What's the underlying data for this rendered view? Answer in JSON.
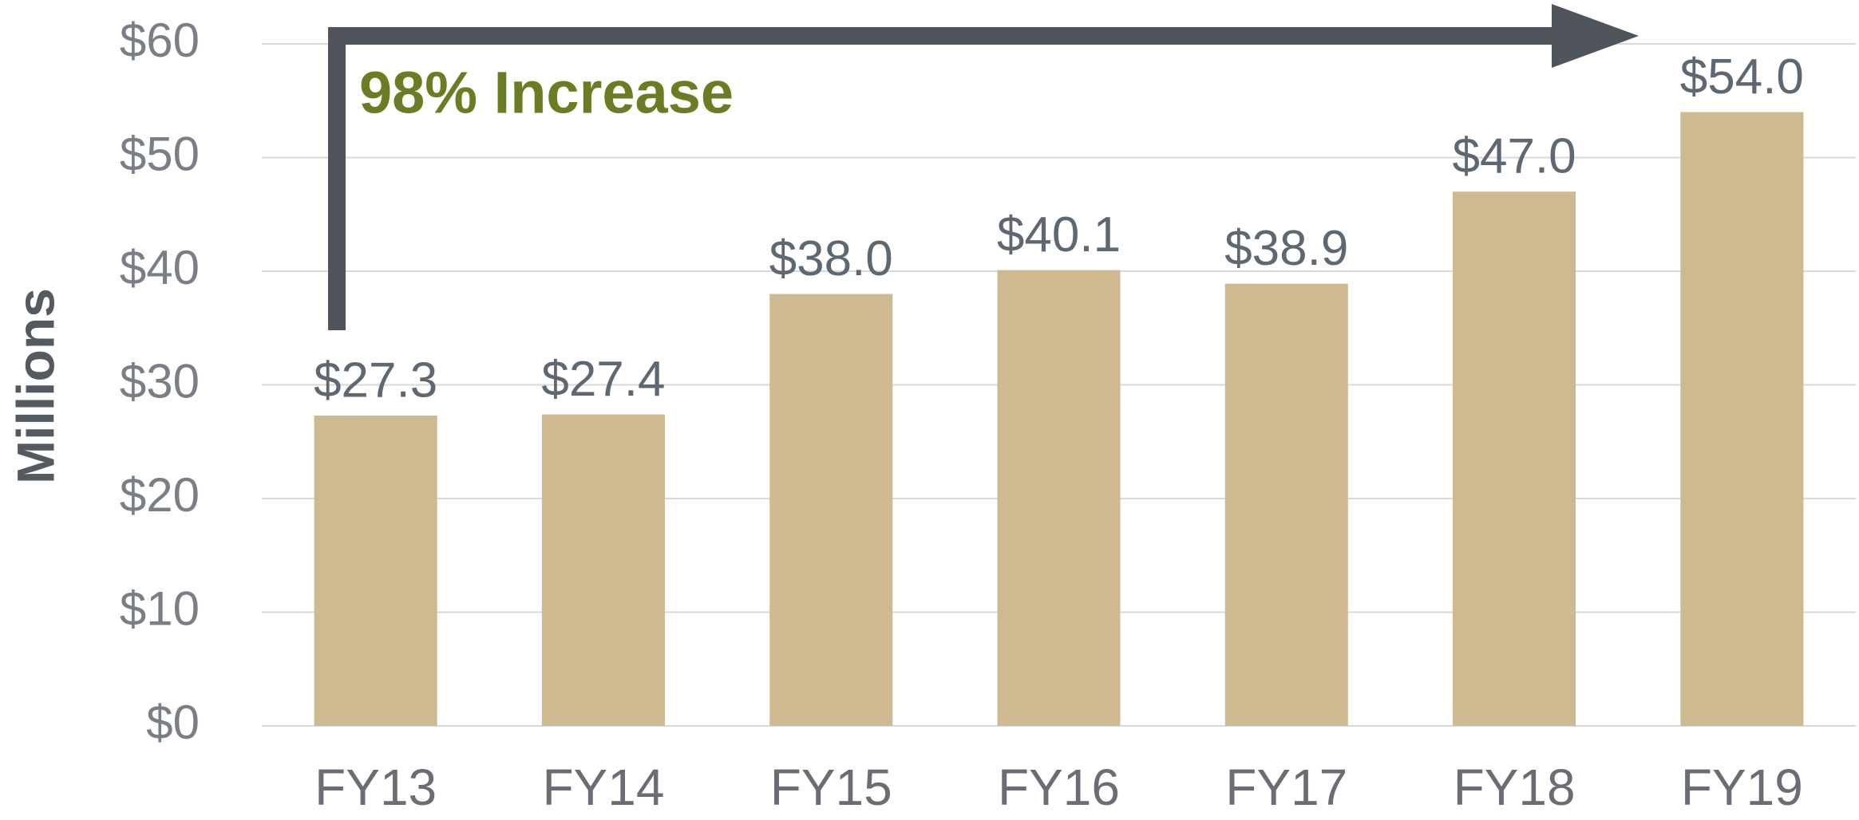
{
  "chart_data": {
    "type": "bar",
    "y_label": "Millions",
    "annotation": "98% Increase",
    "categories": [
      "FY13",
      "FY14",
      "FY15",
      "FY16",
      "FY17",
      "FY18",
      "FY19"
    ],
    "values": [
      27.3,
      27.4,
      38.0,
      40.1,
      38.9,
      47.0,
      54.0
    ],
    "value_labels": [
      "$27.3",
      "$27.4",
      "$38.0",
      "$40.1",
      "$38.9",
      "$47.0",
      "$54.0"
    ],
    "color": "#cfb991",
    "ylim": [
      0,
      60
    ],
    "yticks": [
      {
        "value": 0,
        "label": "$0"
      },
      {
        "value": 10,
        "label": "$10"
      },
      {
        "value": 20,
        "label": "$20"
      },
      {
        "value": 30,
        "label": "$30"
      },
      {
        "value": 40,
        "label": "$40"
      },
      {
        "value": 50,
        "label": "$50"
      },
      {
        "value": 60,
        "label": "$60"
      }
    ],
    "grid": true
  }
}
